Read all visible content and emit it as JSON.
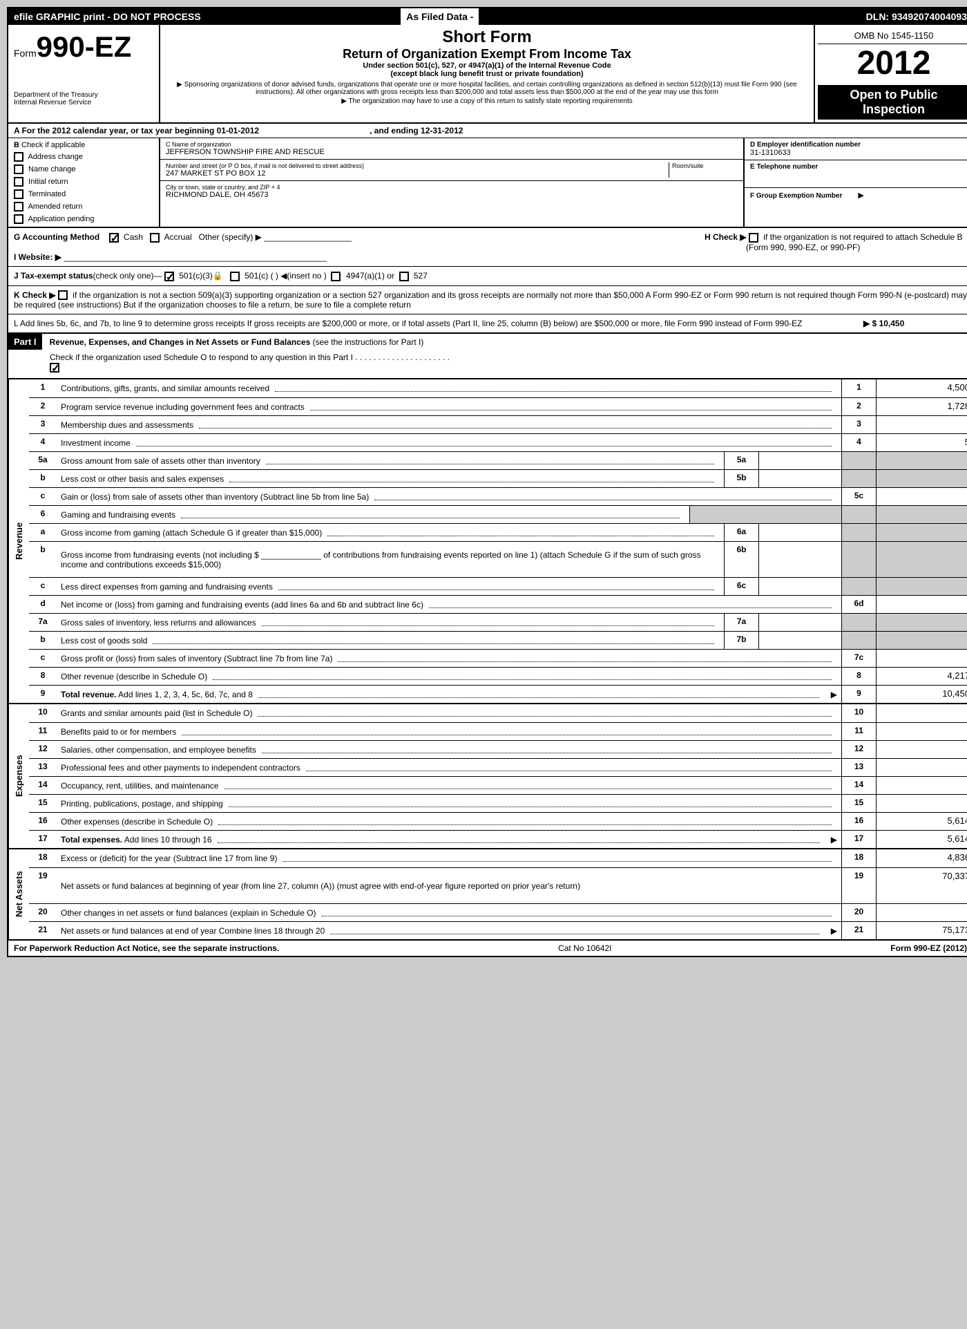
{
  "topbar": {
    "left": "efile GRAPHIC print - DO NOT PROCESS",
    "mid": "As Filed Data -",
    "right": "DLN: 93492074004093"
  },
  "header": {
    "formLabel": "Form",
    "formNum": "990-EZ",
    "dept1": "Department of the Treasury",
    "dept2": "Internal Revenue Service",
    "shortForm": "Short Form",
    "title": "Return of Organization Exempt From Income Tax",
    "subtitle1": "Under section 501(c), 527, or 4947(a)(1) of the Internal Revenue Code",
    "subtitle2": "(except black lung benefit trust or private foundation)",
    "note1": "Sponsoring organizations of donor advised funds, organizations that operate one or more hospital facilities, and certain controlling organizations as defined in section 512(b)(13) must file Form 990 (see instructions). All other organizations with gross receipts less than $200,000 and total assets less than $500,000 at the end of the year may use this form",
    "note2": "The organization may have to use a copy of this return to satisfy state reporting requirements",
    "omb": "OMB No 1545-1150",
    "year": "2012",
    "openPublic1": "Open to Public",
    "openPublic2": "Inspection"
  },
  "sectionA": {
    "label": "A  For the 2012 calendar year, or tax year beginning 01-01-2012",
    "ending": ", and ending 12-31-2012"
  },
  "sectionB": {
    "label": "B",
    "check": "Check if applicable",
    "opts": [
      "Address change",
      "Name change",
      "Initial return",
      "Terminated",
      "Amended return",
      "Application pending"
    ]
  },
  "sectionC": {
    "nameLabel": "C Name of organization",
    "name": "JEFFERSON TOWNSHIP FIRE AND RESCUE",
    "addrLabel": "Number and street (or P O box, if mail is not delivered to street address)",
    "roomLabel": "Room/suite",
    "addr": "247 MARKET ST PO BOX 12",
    "cityLabel": "City or town, state or country, and ZIP + 4",
    "city": "RICHMOND DALE, OH  45673"
  },
  "sectionD": {
    "label": "D Employer identification number",
    "val": "31-1310633"
  },
  "sectionE": {
    "label": "E Telephone number",
    "val": ""
  },
  "sectionF": {
    "label": "F Group Exemption Number",
    "arrow": "▶"
  },
  "sectionG": {
    "label": "G Accounting Method",
    "cash": "Cash",
    "accrual": "Accrual",
    "other": "Other (specify) ▶"
  },
  "sectionH": {
    "label": "H  Check ▶",
    "text1": "if the organization is not required to attach Schedule B",
    "text2": "(Form 990, 990-EZ, or 990-PF)"
  },
  "sectionI": {
    "label": "I Website: ▶"
  },
  "sectionJ": {
    "label": "J Tax-exempt status",
    "note": "(check only one)—",
    "opt1": "501(c)(3)",
    "opt2": "501(c) (   ) ◀(insert no )",
    "opt3": "4947(a)(1) or",
    "opt4": "527"
  },
  "sectionK": {
    "label": "K Check ▶",
    "text": "if the organization is not a section 509(a)(3) supporting organization or a section 527 organization and its gross receipts are normally not more than $50,000  A Form 990-EZ or Form 990 return is not required though Form 990-N (e-postcard) may be required (see instructions)  But if the organization chooses to file a return, be sure to file a complete return"
  },
  "sectionL": {
    "text": "L Add lines 5b, 6c, and 7b, to line 9 to determine gross receipts  If gross receipts are $200,000 or more, or if total assets (Part II, line 25, column (B) below) are $500,000 or more, file Form 990 instead of Form 990-EZ",
    "val": "▶ $ 10,450"
  },
  "part1": {
    "label": "Part I",
    "title": "Revenue, Expenses, and Changes in Net Assets or Fund Balances",
    "note": "(see the instructions for Part I)",
    "sub": "Check if the organization used Schedule O to respond to any question in this Part I  .  .  .  .  .  .  .  .  .  .  .  .  .  .  .  .  .  .  .  .  ."
  },
  "revenue": {
    "label": "Revenue",
    "lines": [
      {
        "n": "1",
        "d": "Contributions, gifts, grants, and similar amounts received",
        "box": "1",
        "v": "4,500"
      },
      {
        "n": "2",
        "d": "Program service revenue including government fees and contracts",
        "box": "2",
        "v": "1,728"
      },
      {
        "n": "3",
        "d": "Membership dues and assessments",
        "box": "3",
        "v": ""
      },
      {
        "n": "4",
        "d": "Investment income",
        "box": "4",
        "v": "5"
      },
      {
        "n": "5a",
        "d": "Gross amount from sale of assets other than inventory",
        "sub": "5a",
        "subv": "",
        "shaded": true
      },
      {
        "n": "b",
        "d": "Less  cost or other basis and sales expenses",
        "sub": "5b",
        "subv": "",
        "shaded": true
      },
      {
        "n": "c",
        "d": "Gain or (loss) from sale of assets other than inventory (Subtract line 5b from line 5a)",
        "box": "5c",
        "v": ""
      },
      {
        "n": "6",
        "d": "Gaming and fundraising events",
        "shaded": true,
        "nobox": true
      },
      {
        "n": "a",
        "d": "Gross income from gaming (attach Schedule G if greater than $15,000)",
        "sub": "6a",
        "subv": "",
        "shaded": true
      },
      {
        "n": "b",
        "d": "Gross income from fundraising events (not including $ _____________ of contributions from fundraising events reported on line 1) (attach Schedule G if the sum of such gross income and contributions exceeds $15,000)",
        "sub": "6b",
        "subv": "",
        "shaded": true,
        "tall": true
      },
      {
        "n": "c",
        "d": "Less  direct expenses from gaming and fundraising events",
        "sub": "6c",
        "subv": "",
        "shaded": true
      },
      {
        "n": "d",
        "d": "Net income or (loss) from gaming and fundraising events (add lines 6a and 6b and subtract line 6c)",
        "box": "6d",
        "v": ""
      },
      {
        "n": "7a",
        "d": "Gross sales of inventory, less returns and allowances",
        "sub": "7a",
        "subv": "",
        "shaded": true
      },
      {
        "n": "b",
        "d": "Less  cost of goods sold",
        "sub": "7b",
        "subv": "",
        "shaded": true
      },
      {
        "n": "c",
        "d": "Gross profit or (loss) from sales of inventory (Subtract line 7b from line 7a)",
        "box": "7c",
        "v": ""
      },
      {
        "n": "8",
        "d": "Other revenue (describe in Schedule O)",
        "box": "8",
        "v": "4,217"
      },
      {
        "n": "9",
        "d": "Total revenue. Add lines 1, 2, 3, 4, 5c, 6d, 7c, and 8",
        "box": "9",
        "v": "10,450",
        "bold": true,
        "arrow": true
      }
    ]
  },
  "expenses": {
    "label": "Expenses",
    "lines": [
      {
        "n": "10",
        "d": "Grants and similar amounts paid (list in Schedule O)",
        "box": "10",
        "v": ""
      },
      {
        "n": "11",
        "d": "Benefits paid to or for members",
        "box": "11",
        "v": ""
      },
      {
        "n": "12",
        "d": "Salaries, other compensation, and employee benefits",
        "box": "12",
        "v": ""
      },
      {
        "n": "13",
        "d": "Professional fees and other payments to independent contractors",
        "box": "13",
        "v": ""
      },
      {
        "n": "14",
        "d": "Occupancy, rent, utilities, and maintenance",
        "box": "14",
        "v": ""
      },
      {
        "n": "15",
        "d": "Printing, publications, postage, and shipping",
        "box": "15",
        "v": ""
      },
      {
        "n": "16",
        "d": "Other expenses (describe in Schedule O)",
        "box": "16",
        "v": "5,614"
      },
      {
        "n": "17",
        "d": "Total expenses. Add lines 10 through 16",
        "box": "17",
        "v": "5,614",
        "bold": true,
        "arrow": true
      }
    ]
  },
  "netassets": {
    "label": "Net Assets",
    "lines": [
      {
        "n": "18",
        "d": "Excess or (deficit) for the year (Subtract line 17 from line 9)",
        "box": "18",
        "v": "4,836"
      },
      {
        "n": "19",
        "d": "Net assets or fund balances at beginning of year (from line 27, column (A)) (must agree with end-of-year figure reported on prior year's return)",
        "box": "19",
        "v": "70,337",
        "tall": true
      },
      {
        "n": "20",
        "d": "Other changes in net assets or fund balances (explain in Schedule O)",
        "box": "20",
        "v": ""
      },
      {
        "n": "21",
        "d": "Net assets or fund balances at end of year  Combine lines 18 through 20",
        "box": "21",
        "v": "75,173",
        "arrow": true
      }
    ]
  },
  "footer": {
    "left": "For Paperwork Reduction Act Notice, see the separate instructions.",
    "mid": "Cat No 10642I",
    "right": "Form 990-EZ (2012)"
  }
}
